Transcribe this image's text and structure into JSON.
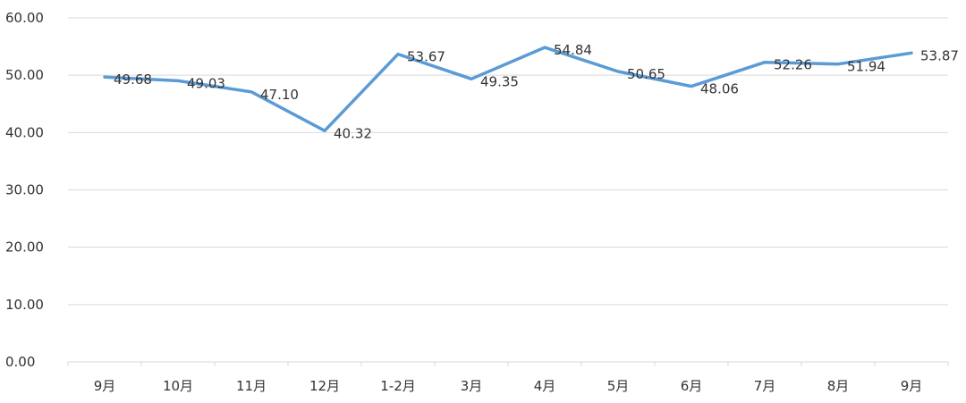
{
  "chart_data": {
    "type": "line",
    "title": "",
    "xlabel": "",
    "ylabel": "",
    "categories": [
      "9月",
      "10月",
      "11月",
      "12月",
      "1-2月",
      "3月",
      "4月",
      "5月",
      "6月",
      "7月",
      "8月",
      "9月"
    ],
    "series": [
      {
        "values": [
          49.68,
          49.03,
          47.1,
          40.32,
          53.67,
          49.35,
          54.84,
          50.65,
          48.06,
          52.26,
          51.94,
          53.87
        ],
        "labels": [
          "49.68",
          "49.03",
          "47.10",
          "40.32",
          "53.67",
          "49.35",
          "54.84",
          "50.65",
          "48.06",
          "52.26",
          "51.94",
          "53.87"
        ],
        "color": "#5b9bd5"
      }
    ],
    "ylim": [
      0,
      60
    ],
    "yticks": [
      "0.00",
      "10.00",
      "20.00",
      "30.00",
      "40.00",
      "50.00",
      "60.00"
    ],
    "ytick_values": [
      0,
      10,
      20,
      30,
      40,
      50,
      60
    ],
    "grid": true,
    "legend": "none",
    "gridColor": "#d9d9d9",
    "textColor": "#333333"
  }
}
